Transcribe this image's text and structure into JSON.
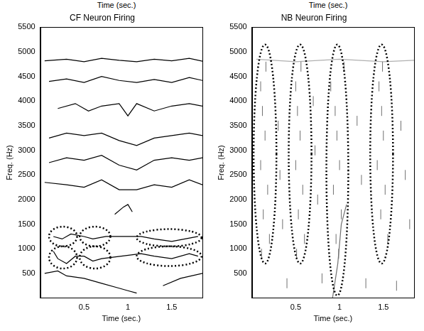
{
  "chart_data": [
    {
      "type": "scatter",
      "title": "CF Neuron Firing",
      "top_text": "Time (sec.)",
      "x_label": "Time (sec.)",
      "y_label": "Freq. (Hz)",
      "xlim": [
        0,
        1.85
      ],
      "xticks": [
        0.5,
        1,
        1.5
      ],
      "ylim": [
        0,
        5500
      ],
      "yticks": [
        500,
        1000,
        1500,
        2000,
        2500,
        3000,
        3500,
        4000,
        4500,
        5000,
        5500
      ],
      "grid": false,
      "series": [
        {
          "color": "#000000",
          "marker": "none",
          "line_style": "solid",
          "x": [
            0.05,
            0.3,
            0.5,
            0.7,
            0.9,
            1.1,
            1.3,
            1.5,
            1.7,
            1.85
          ],
          "values": [
            4820,
            4850,
            4800,
            4870,
            4830,
            4800,
            4850,
            4820,
            4870,
            4810
          ]
        },
        {
          "color": "#000000",
          "marker": "none",
          "line_style": "solid",
          "x": [
            0.1,
            0.3,
            0.5,
            0.7,
            0.9,
            1.1,
            1.3,
            1.5,
            1.7,
            1.85
          ],
          "values": [
            4400,
            4450,
            4380,
            4500,
            4420,
            4380,
            4440,
            4380,
            4480,
            4420
          ]
        },
        {
          "color": "#000000",
          "marker": "none",
          "line_style": "solid",
          "x": [
            0.2,
            0.4,
            0.55,
            0.7,
            0.9,
            1.0,
            1.1,
            1.3,
            1.5,
            1.7,
            1.85
          ],
          "values": [
            3850,
            3950,
            3800,
            3900,
            3950,
            3700,
            3950,
            3800,
            3900,
            3950,
            3900
          ]
        },
        {
          "color": "#000000",
          "marker": "none",
          "line_style": "solid",
          "x": [
            0.1,
            0.3,
            0.5,
            0.7,
            0.9,
            1.1,
            1.3,
            1.5,
            1.7,
            1.85
          ],
          "values": [
            3250,
            3350,
            3300,
            3350,
            3200,
            3100,
            3250,
            3300,
            3350,
            3300
          ]
        },
        {
          "color": "#000000",
          "marker": "none",
          "line_style": "solid",
          "x": [
            0.1,
            0.3,
            0.5,
            0.7,
            0.9,
            1.1,
            1.3,
            1.5,
            1.7,
            1.85
          ],
          "values": [
            2750,
            2850,
            2800,
            2900,
            2700,
            2600,
            2800,
            2850,
            2800,
            2850
          ]
        },
        {
          "color": "#000000",
          "marker": "none",
          "line_style": "solid",
          "x": [
            0.05,
            0.3,
            0.5,
            0.7,
            0.9,
            1.1,
            1.3,
            1.5,
            1.7,
            1.85
          ],
          "values": [
            2350,
            2300,
            2250,
            2400,
            2200,
            2200,
            2300,
            2250,
            2400,
            2300
          ]
        },
        {
          "color": "#000000",
          "marker": "none",
          "line_style": "solid",
          "x": [
            0.85,
            0.95,
            1.0,
            1.05
          ],
          "values": [
            1700,
            1850,
            1900,
            1750
          ]
        },
        {
          "color": "#000000",
          "marker": "none",
          "line_style": "solid",
          "x": [
            0.15,
            0.25,
            0.35,
            0.5,
            0.6,
            0.75,
            1.15,
            1.3,
            1.5,
            1.65,
            1.8
          ],
          "values": [
            1250,
            1200,
            1300,
            1250,
            1200,
            1250,
            1250,
            1200,
            1150,
            1200,
            1250
          ]
        },
        {
          "color": "#000000",
          "marker": "none",
          "line_style": "solid",
          "x": [
            0.15,
            0.2,
            0.3,
            0.4,
            0.5,
            0.6,
            0.7,
            1.15,
            1.3,
            1.5,
            1.7,
            1.8
          ],
          "values": [
            950,
            800,
            700,
            850,
            850,
            750,
            800,
            900,
            850,
            800,
            900,
            850
          ]
        },
        {
          "color": "#000000",
          "marker": "none",
          "line_style": "solid",
          "x": [
            0.05,
            0.2,
            0.3,
            0.5,
            0.7,
            0.9,
            1.0,
            1.1
          ],
          "values": [
            500,
            550,
            450,
            400,
            300,
            200,
            150,
            100
          ]
        },
        {
          "color": "#000000",
          "marker": "none",
          "line_style": "solid",
          "x": [
            1.4,
            1.6,
            1.85
          ],
          "values": [
            250,
            400,
            500
          ]
        }
      ],
      "ellipses": [
        {
          "x": [
            0.1,
            0.42
          ],
          "y": [
            1050,
            1450
          ]
        },
        {
          "x": [
            0.45,
            0.8
          ],
          "y": [
            1050,
            1450
          ]
        },
        {
          "x": [
            1.1,
            1.84
          ],
          "y": [
            1050,
            1400
          ]
        },
        {
          "x": [
            0.1,
            0.42
          ],
          "y": [
            600,
            1050
          ]
        },
        {
          "x": [
            0.45,
            0.8
          ],
          "y": [
            600,
            1050
          ]
        },
        {
          "x": [
            1.1,
            1.84
          ],
          "y": [
            650,
            1050
          ]
        }
      ]
    },
    {
      "type": "scatter",
      "title": "NB Neuron Firing",
      "top_text": "Time (sec.)",
      "x_label": "Time (sec.)",
      "y_label": "Freq. (Hz)",
      "xlim": [
        0,
        1.85
      ],
      "xticks": [
        0.5,
        1,
        1.5
      ],
      "ylim": [
        0,
        5500
      ],
      "yticks": [
        500,
        1000,
        1500,
        2000,
        2500,
        3000,
        3500,
        4000,
        4500,
        5000,
        5500
      ],
      "grid": false,
      "series": [
        {
          "color": "#707070",
          "marker": "vline",
          "line_style": "none",
          "x": [
            0.1,
            0.12,
            0.15,
            0.1,
            0.18,
            0.13,
            0.2,
            0.11,
            0.16,
            0.3,
            0.32,
            0.35,
            0.5,
            0.52,
            0.55,
            0.5,
            0.58,
            0.53,
            0.6,
            0.51,
            0.56,
            0.7,
            0.72,
            0.75,
            0.9,
            0.95,
            0.97,
            1.0,
            0.93,
            1.02,
            0.96,
            1.05,
            0.99,
            1.2,
            1.25,
            1.45,
            1.48,
            1.5,
            1.43,
            1.52,
            1.47,
            1.55,
            1.49,
            1.7,
            1.75,
            1.8,
            0.4,
            0.8,
            1.3,
            1.65
          ],
          "values": [
            4300,
            3800,
            3300,
            2700,
            2200,
            1700,
            1200,
            900,
            4700,
            3500,
            2500,
            1500,
            4300,
            3800,
            3300,
            2700,
            2200,
            1700,
            1200,
            900,
            4700,
            4000,
            3000,
            2000,
            4300,
            3800,
            3300,
            2700,
            2200,
            1700,
            1200,
            4700,
            900,
            3600,
            2400,
            4300,
            3800,
            3300,
            2700,
            2200,
            1700,
            1200,
            4700,
            3500,
            2500,
            1500,
            300,
            400,
            300,
            250
          ]
        },
        {
          "color": "#707070",
          "marker": "none",
          "line_style": "solid",
          "x": [
            0.92,
            0.98,
            1.02,
            1.08
          ],
          "values": [
            0,
            700,
            1500,
            1900
          ]
        },
        {
          "color": "#b0b0b0",
          "marker": "none",
          "line_style": "solid",
          "x": [
            0.05,
            0.5,
            1.0,
            1.5,
            1.85
          ],
          "values": [
            4850,
            4800,
            4850,
            4800,
            4830
          ]
        }
      ],
      "ellipses": [
        {
          "x": [
            0.02,
            0.28
          ],
          "y": [
            700,
            5150
          ]
        },
        {
          "x": [
            0.42,
            0.68
          ],
          "y": [
            700,
            5150
          ]
        },
        {
          "x": [
            0.85,
            1.1
          ],
          "y": [
            50,
            5150
          ]
        },
        {
          "x": [
            1.35,
            1.61
          ],
          "y": [
            700,
            5150
          ]
        }
      ]
    }
  ]
}
